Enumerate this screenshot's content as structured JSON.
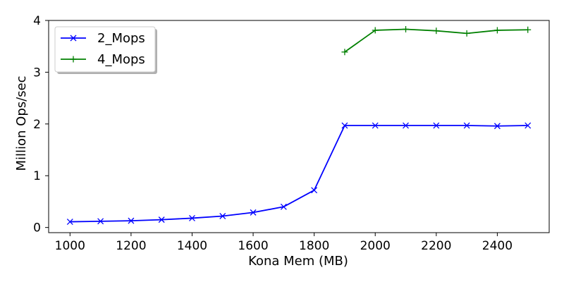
{
  "chart_data": {
    "type": "line",
    "title": "",
    "xlabel": "Kona Mem (MB)",
    "ylabel": "Million Ops/sec",
    "xlim": [
      930,
      2570
    ],
    "ylim": [
      -0.1,
      4.0
    ],
    "xticks": [
      1000,
      1200,
      1400,
      1600,
      1800,
      2000,
      2200,
      2400
    ],
    "yticks": [
      0,
      1,
      2,
      3,
      4
    ],
    "grid": false,
    "legend_position": "top-left",
    "series": [
      {
        "name": "2_Mops",
        "color": "#0000ff",
        "marker": "x",
        "x": [
          1000,
          1100,
          1200,
          1300,
          1400,
          1500,
          1600,
          1700,
          1800,
          1900,
          2000,
          2100,
          2200,
          2300,
          2400,
          2500
        ],
        "y": [
          0.11,
          0.12,
          0.13,
          0.15,
          0.18,
          0.22,
          0.29,
          0.4,
          0.72,
          1.97,
          1.97,
          1.97,
          1.97,
          1.97,
          1.96,
          1.97
        ]
      },
      {
        "name": "4_Mops",
        "color": "#008000",
        "marker": "+",
        "x": [
          1900,
          2000,
          2100,
          2200,
          2300,
          2400,
          2500
        ],
        "y": [
          3.39,
          3.81,
          3.83,
          3.8,
          3.75,
          3.81,
          3.82
        ]
      }
    ]
  }
}
